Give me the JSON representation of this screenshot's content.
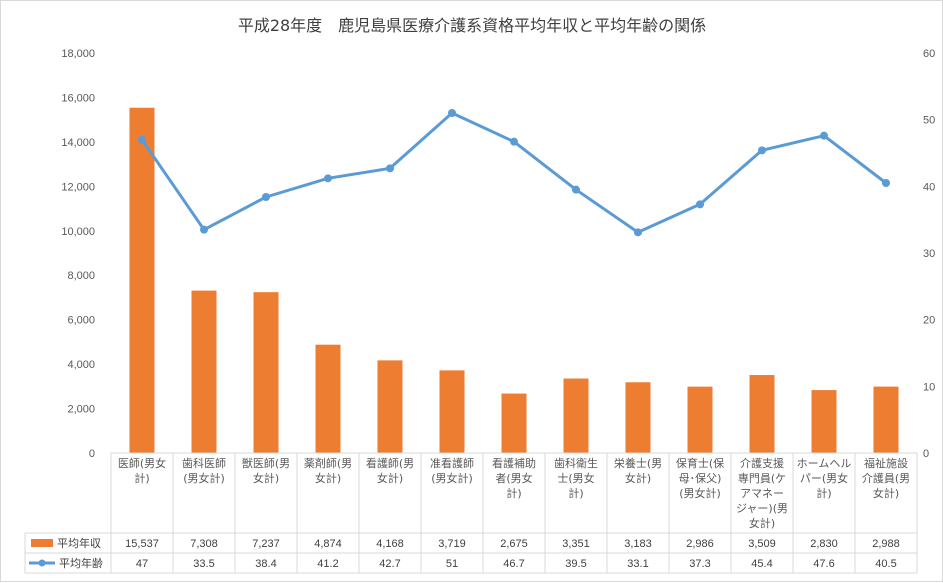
{
  "chart_data": {
    "type": "bar+line",
    "title": "平成28年度　鹿児島県医療介護系資格平均年収と平均年齢の関係",
    "categories": [
      "医師(男女計)",
      "歯科医師(男女計)",
      "獣医師(男女計)",
      "薬剤師(男女計)",
      "看護師(男女計)",
      "准看護師(男女計)",
      "看護補助者(男女計)",
      "歯科衛生士(男女計)",
      "栄養士(男女計)",
      "保育士(保母・保父)(男女計)",
      "介護支援専門員(ケアマネージャー)(男女計)",
      "ホームヘルパー(男女計)",
      "福祉施設介護員(男女計)"
    ],
    "category_lines": [
      [
        "医師(男女",
        "計)"
      ],
      [
        "歯科医師",
        "(男女計)"
      ],
      [
        "獣医師(男",
        "女計)"
      ],
      [
        "薬剤師(男",
        "女計)"
      ],
      [
        "看護師(男",
        "女計)"
      ],
      [
        "准看護師",
        "(男女計)"
      ],
      [
        "看護補助",
        "者(男女",
        "計)"
      ],
      [
        "歯科衛生",
        "士(男女",
        "計)"
      ],
      [
        "栄養士(男",
        "女計)"
      ],
      [
        "保育士(保",
        "母･保父)",
        "(男女計)"
      ],
      [
        "介護支援",
        "専門員(ケ",
        "アマネー",
        "ジャー)(男",
        "女計)"
      ],
      [
        "ホームヘル",
        "パー(男女",
        "計)"
      ],
      [
        "福祉施設",
        "介護員(男",
        "女計)"
      ]
    ],
    "series": [
      {
        "name": "平均年収",
        "type": "bar",
        "axis": "left",
        "color": "#ed7d31",
        "values": [
          15537,
          7308,
          7237,
          4874,
          4168,
          3719,
          2675,
          3351,
          3183,
          2986,
          3509,
          2830,
          2988
        ],
        "labels": [
          "15,537",
          "7,308",
          "7,237",
          "4,874",
          "4,168",
          "3,719",
          "2,675",
          "3,351",
          "3,183",
          "2,986",
          "3,509",
          "2,830",
          "2,988"
        ]
      },
      {
        "name": "平均年齢",
        "type": "line",
        "axis": "right",
        "color": "#5b9bd5",
        "values": [
          47,
          33.5,
          38.4,
          41.2,
          42.7,
          51,
          46.7,
          39.5,
          33.1,
          37.3,
          45.4,
          47.6,
          40.5
        ],
        "labels": [
          "47",
          "33.5",
          "38.4",
          "41.2",
          "42.7",
          "51",
          "46.7",
          "39.5",
          "33.1",
          "37.3",
          "45.4",
          "47.6",
          "40.5"
        ]
      }
    ],
    "y_left": {
      "min": 0,
      "max": 18000,
      "step": 2000,
      "tick_labels": [
        "0",
        "2,000",
        "4,000",
        "6,000",
        "8,000",
        "10,000",
        "12,000",
        "14,000",
        "16,000",
        "18,000"
      ]
    },
    "y_right": {
      "min": 0,
      "max": 60,
      "step": 10,
      "tick_labels": [
        "0",
        "10",
        "20",
        "30",
        "40",
        "50",
        "60"
      ]
    },
    "gridlines": false,
    "legend": "data-table"
  }
}
